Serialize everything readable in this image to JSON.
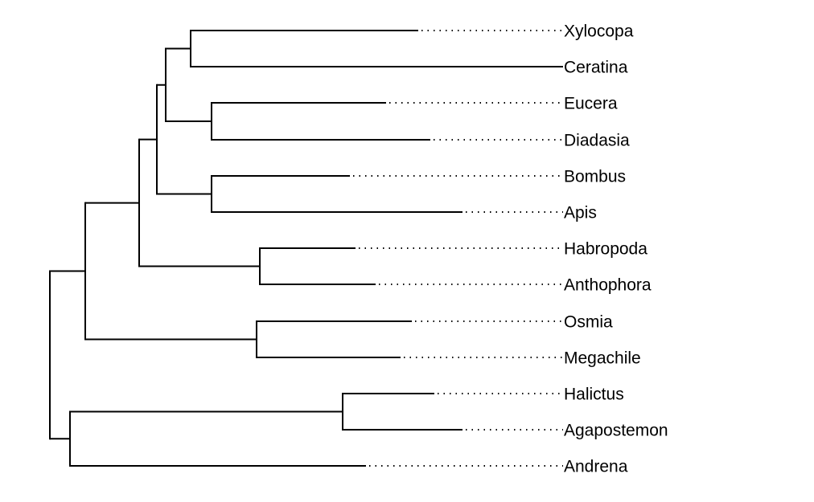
{
  "tree": {
    "taxa": [
      "Xylocopa",
      "Ceratina",
      "Eucera",
      "Diadasia",
      "Bombus",
      "Apis",
      "Habropoda",
      "Anthophora",
      "Osmia",
      "Megachile",
      "Halictus",
      "Agapostemon",
      "Andrena"
    ],
    "newick": "((((((Xylocopa,Ceratina),(Eucera,Diadasia)),(Bombus,Apis)),(Habropoda,Anthophora)),(Osmia,Megachile)),((Halictus,Agapostemon),Andrena));"
  }
}
